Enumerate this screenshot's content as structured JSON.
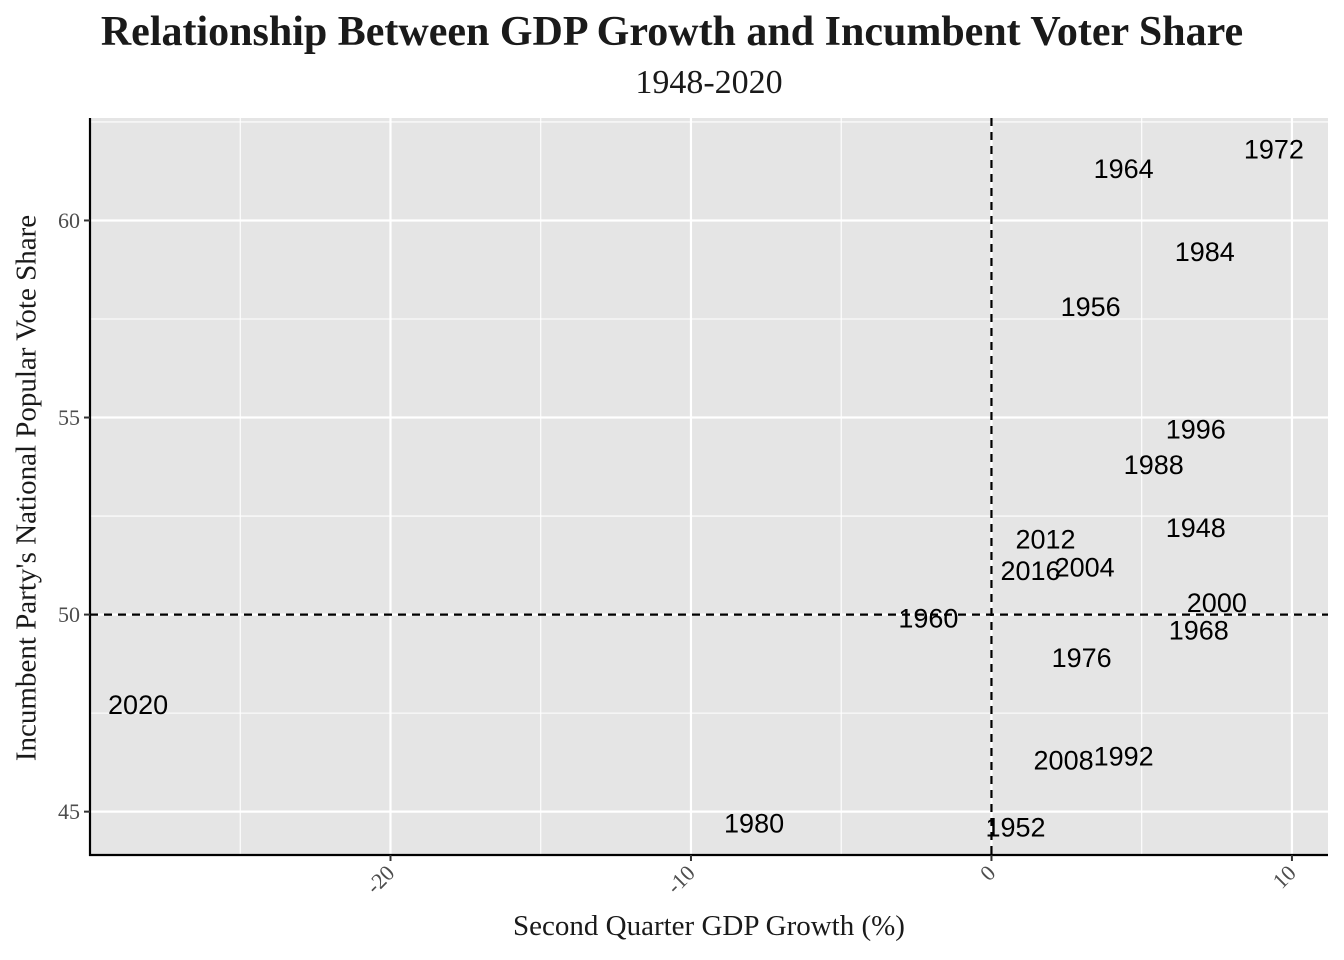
{
  "chart_data": {
    "type": "scatter",
    "title": "Relationship Between GDP Growth and Incumbent Voter Share",
    "subtitle": "1948-2020",
    "xlabel": "Second Quarter GDP Growth (%)",
    "ylabel": "Incumbent Party's National Popular Vote Share",
    "xlim": [
      -30,
      11.2
    ],
    "ylim": [
      43.9,
      62.6
    ],
    "x_ticks": [
      -20,
      -10,
      0,
      10
    ],
    "y_ticks": [
      45,
      50,
      55,
      60
    ],
    "reference_lines": {
      "vertical_x": 0,
      "horizontal_y": 50
    },
    "grid": true,
    "points": [
      {
        "label": "1948",
        "x": 6.8,
        "y": 52.2
      },
      {
        "label": "1952",
        "x": 0.8,
        "y": 44.6
      },
      {
        "label": "1956",
        "x": 3.3,
        "y": 57.8
      },
      {
        "label": "1960",
        "x": -2.1,
        "y": 49.9
      },
      {
        "label": "1964",
        "x": 4.4,
        "y": 61.3
      },
      {
        "label": "1968",
        "x": 6.9,
        "y": 49.6
      },
      {
        "label": "1972",
        "x": 9.4,
        "y": 61.8
      },
      {
        "label": "1976",
        "x": 3.0,
        "y": 48.9
      },
      {
        "label": "1980",
        "x": -7.9,
        "y": 44.7
      },
      {
        "label": "1984",
        "x": 7.1,
        "y": 59.2
      },
      {
        "label": "1988",
        "x": 5.4,
        "y": 53.8
      },
      {
        "label": "1992",
        "x": 4.4,
        "y": 46.4
      },
      {
        "label": "1996",
        "x": 6.8,
        "y": 54.7
      },
      {
        "label": "2000",
        "x": 7.5,
        "y": 50.3
      },
      {
        "label": "2004",
        "x": 3.1,
        "y": 51.2
      },
      {
        "label": "2008",
        "x": 2.4,
        "y": 46.3
      },
      {
        "label": "2012",
        "x": 1.8,
        "y": 51.9
      },
      {
        "label": "2016",
        "x": 1.3,
        "y": 51.1
      },
      {
        "label": "2020",
        "x": -28.4,
        "y": 47.7
      }
    ]
  }
}
